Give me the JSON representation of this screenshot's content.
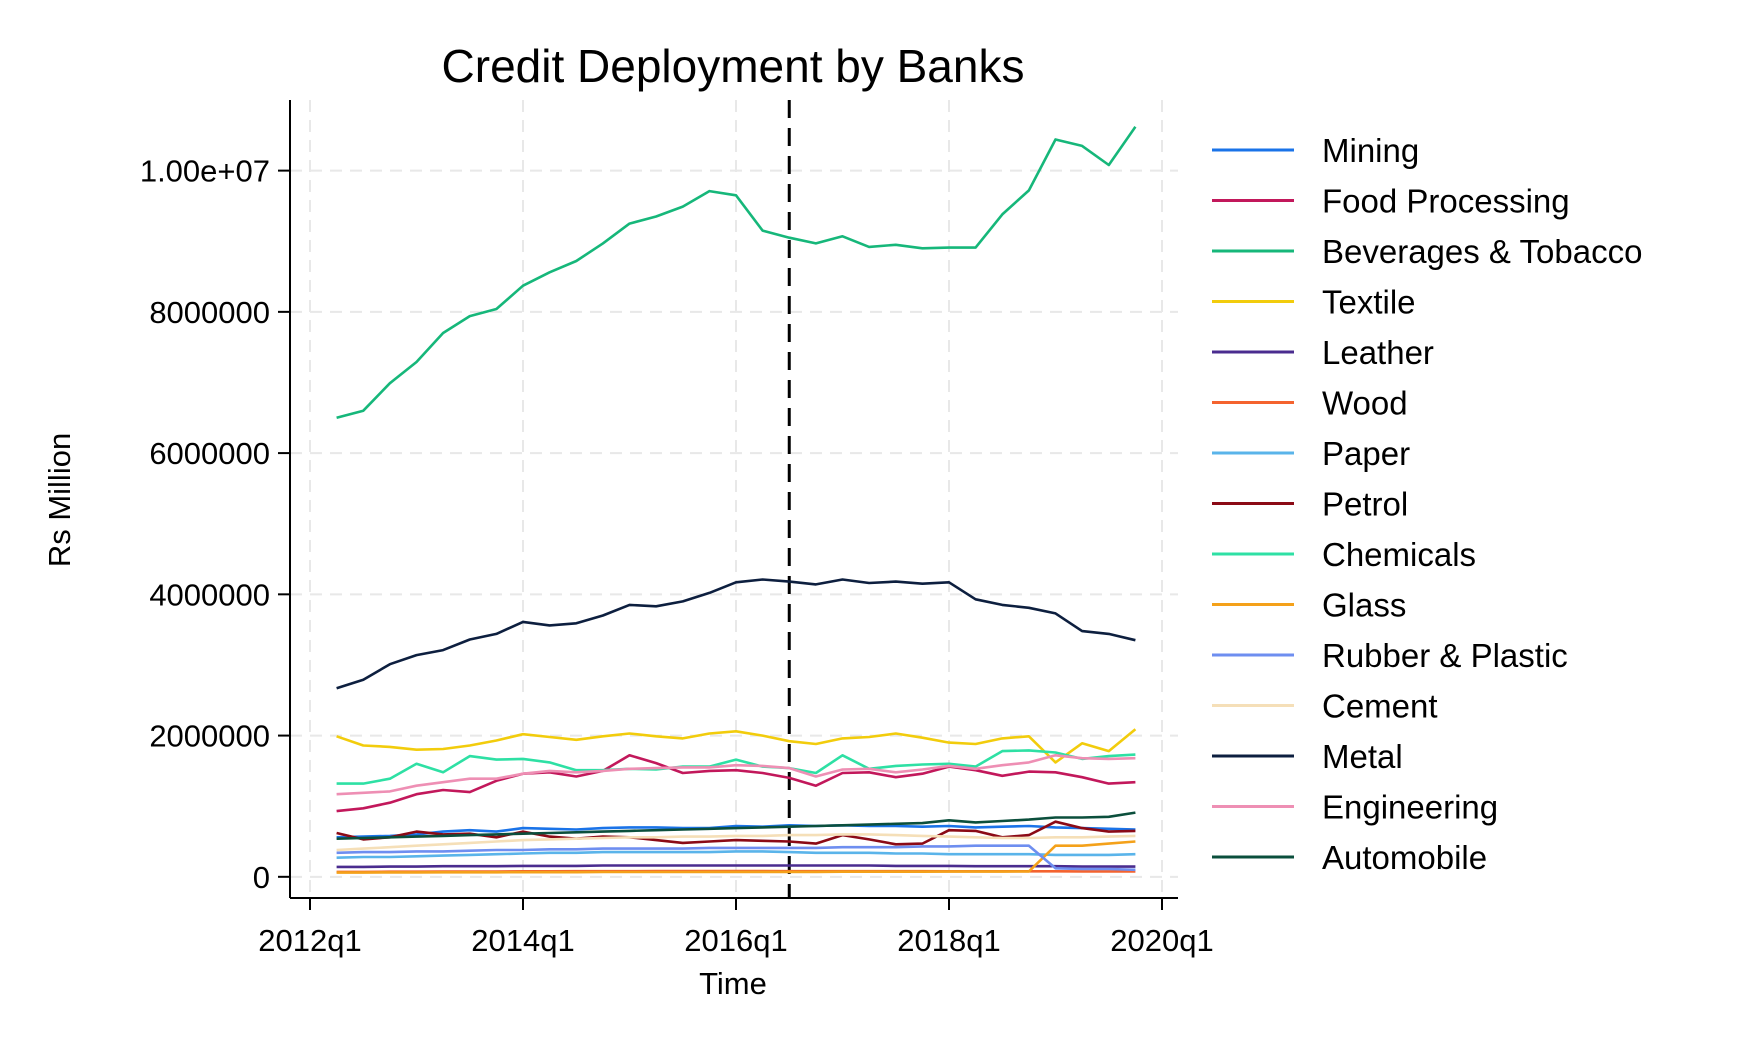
{
  "chart_data": {
    "type": "line",
    "title": "Credit Deployment by Banks",
    "xlabel": "Time",
    "ylabel": "Rs Million",
    "x_range": [
      2012.0,
      2020.0
    ],
    "ylim": [
      -300000,
      11000000
    ],
    "x_ticks": [
      {
        "value": 2012.0,
        "label": "2012q1"
      },
      {
        "value": 2014.0,
        "label": "2014q1"
      },
      {
        "value": 2016.0,
        "label": "2016q1"
      },
      {
        "value": 2018.0,
        "label": "2018q1"
      },
      {
        "value": 2020.0,
        "label": "2020q1"
      }
    ],
    "y_ticks": [
      {
        "value": 0,
        "label": "0"
      },
      {
        "value": 2000000,
        "label": "2000000"
      },
      {
        "value": 4000000,
        "label": "4000000"
      },
      {
        "value": 6000000,
        "label": "6000000"
      },
      {
        "value": 8000000,
        "label": "8000000"
      },
      {
        "value": 10000000,
        "label": "1.00e+07"
      }
    ],
    "grid": true,
    "legend_position": "right",
    "reference_line": {
      "x": 2016.5,
      "style": "dashed"
    },
    "x": [
      "2012q2",
      "2012q3",
      "2012q4",
      "2013q1",
      "2013q2",
      "2013q3",
      "2013q4",
      "2014q1",
      "2014q2",
      "2014q3",
      "2014q4",
      "2015q1",
      "2015q2",
      "2015q3",
      "2015q4",
      "2016q1",
      "2016q2",
      "2016q3",
      "2016q4",
      "2017q1",
      "2017q2",
      "2017q3",
      "2017q4",
      "2018q1",
      "2018q2",
      "2018q3",
      "2018q4",
      "2019q1",
      "2019q2",
      "2019q3",
      "2019q4"
    ],
    "series": [
      {
        "name": "Mining",
        "color": "#1a73e8",
        "values": [
          560000,
          570000,
          580000,
          600000,
          640000,
          660000,
          640000,
          690000,
          680000,
          670000,
          690000,
          700000,
          700000,
          690000,
          690000,
          720000,
          710000,
          730000,
          720000,
          730000,
          720000,
          720000,
          710000,
          720000,
          700000,
          710000,
          720000,
          700000,
          690000,
          680000,
          670000
        ]
      },
      {
        "name": "Food Processing",
        "color": "#c2185b",
        "values": [
          930000,
          970000,
          1050000,
          1170000,
          1230000,
          1200000,
          1360000,
          1460000,
          1480000,
          1420000,
          1500000,
          1720000,
          1610000,
          1470000,
          1500000,
          1510000,
          1470000,
          1400000,
          1290000,
          1470000,
          1480000,
          1410000,
          1460000,
          1560000,
          1510000,
          1430000,
          1490000,
          1480000,
          1410000,
          1320000,
          1340000
        ]
      },
      {
        "name": "Beverages & Tobacco",
        "color": "#16b77a",
        "values": [
          6500000,
          6600000,
          6990000,
          7290000,
          7700000,
          7940000,
          8040000,
          8370000,
          8560000,
          8720000,
          8970000,
          9250000,
          9350000,
          9490000,
          9710000,
          9650000,
          9150000,
          9050000,
          8970000,
          9070000,
          8920000,
          8950000,
          8900000,
          8910000,
          8910000,
          9380000,
          9720000,
          10440000,
          10350000,
          10080000,
          10620000
        ]
      },
      {
        "name": "Textile",
        "color": "#f2cc0c",
        "values": [
          1990000,
          1860000,
          1840000,
          1800000,
          1810000,
          1860000,
          1930000,
          2020000,
          1980000,
          1940000,
          1990000,
          2030000,
          1990000,
          1960000,
          2030000,
          2060000,
          2000000,
          1920000,
          1880000,
          1960000,
          1980000,
          2030000,
          1970000,
          1900000,
          1880000,
          1960000,
          1990000,
          1620000,
          1890000,
          1780000,
          2090000
        ]
      },
      {
        "name": "Leather",
        "color": "#4a2c8f",
        "values": [
          140000,
          140000,
          145000,
          145000,
          150000,
          150000,
          150000,
          155000,
          155000,
          155000,
          160000,
          160000,
          160000,
          160000,
          160000,
          160000,
          160000,
          160000,
          160000,
          160000,
          160000,
          155000,
          155000,
          155000,
          150000,
          150000,
          150000,
          150000,
          145000,
          145000,
          145000
        ]
      },
      {
        "name": "Wood",
        "color": "#f4632f",
        "values": [
          70000,
          70000,
          72000,
          72000,
          75000,
          75000,
          75000,
          78000,
          78000,
          80000,
          80000,
          80000,
          82000,
          82000,
          82000,
          82000,
          82000,
          80000,
          80000,
          80000,
          80000,
          80000,
          80000,
          78000,
          78000,
          78000,
          78000,
          78000,
          76000,
          76000,
          76000
        ]
      },
      {
        "name": "Paper",
        "color": "#5ab4ea",
        "values": [
          270000,
          280000,
          280000,
          290000,
          300000,
          310000,
          320000,
          330000,
          340000,
          340000,
          350000,
          350000,
          350000,
          350000,
          350000,
          360000,
          360000,
          350000,
          340000,
          340000,
          340000,
          330000,
          330000,
          320000,
          320000,
          320000,
          320000,
          310000,
          310000,
          310000,
          320000
        ]
      },
      {
        "name": "Petrol",
        "color": "#8b0a16",
        "values": [
          620000,
          530000,
          560000,
          640000,
          600000,
          610000,
          560000,
          640000,
          570000,
          540000,
          570000,
          560000,
          520000,
          480000,
          500000,
          520000,
          510000,
          500000,
          470000,
          590000,
          530000,
          460000,
          470000,
          660000,
          650000,
          560000,
          590000,
          780000,
          690000,
          640000,
          650000
        ]
      },
      {
        "name": "Chemicals",
        "color": "#2ee0a4",
        "values": [
          1320000,
          1320000,
          1390000,
          1600000,
          1480000,
          1710000,
          1660000,
          1670000,
          1620000,
          1510000,
          1510000,
          1530000,
          1520000,
          1560000,
          1560000,
          1660000,
          1560000,
          1540000,
          1470000,
          1720000,
          1530000,
          1570000,
          1590000,
          1600000,
          1560000,
          1780000,
          1790000,
          1760000,
          1670000,
          1710000,
          1730000
        ]
      },
      {
        "name": "Glass",
        "color": "#f4a11a",
        "values": [
          60000,
          60000,
          62000,
          62000,
          64000,
          64000,
          64000,
          66000,
          66000,
          66000,
          68000,
          68000,
          68000,
          68000,
          70000,
          70000,
          70000,
          70000,
          70000,
          72000,
          72000,
          72000,
          72000,
          74000,
          74000,
          74000,
          76000,
          440000,
          440000,
          470000,
          500000
        ]
      },
      {
        "name": "Rubber & Plastic",
        "color": "#6e8ef0",
        "values": [
          340000,
          350000,
          350000,
          360000,
          360000,
          370000,
          380000,
          380000,
          390000,
          390000,
          400000,
          400000,
          400000,
          400000,
          410000,
          410000,
          410000,
          410000,
          410000,
          420000,
          420000,
          420000,
          430000,
          430000,
          440000,
          440000,
          440000,
          120000,
          110000,
          110000,
          100000
        ]
      },
      {
        "name": "Cement",
        "color": "#f5dfb8",
        "values": [
          380000,
          400000,
          420000,
          440000,
          460000,
          480000,
          500000,
          520000,
          530000,
          540000,
          550000,
          560000,
          560000,
          570000,
          570000,
          580000,
          580000,
          590000,
          590000,
          600000,
          600000,
          590000,
          580000,
          570000,
          560000,
          550000,
          550000,
          560000,
          560000,
          570000,
          580000
        ]
      },
      {
        "name": "Metal",
        "color": "#0d1f3f",
        "values": [
          2670000,
          2790000,
          3010000,
          3140000,
          3210000,
          3360000,
          3440000,
          3610000,
          3560000,
          3590000,
          3700000,
          3850000,
          3830000,
          3900000,
          4020000,
          4170000,
          4210000,
          4180000,
          4140000,
          4210000,
          4160000,
          4180000,
          4150000,
          4170000,
          3930000,
          3850000,
          3810000,
          3730000,
          3480000,
          3440000,
          3350000
        ]
      },
      {
        "name": "Engineering",
        "color": "#ee8fb4",
        "values": [
          1170000,
          1190000,
          1210000,
          1290000,
          1340000,
          1390000,
          1390000,
          1460000,
          1500000,
          1480000,
          1500000,
          1530000,
          1540000,
          1550000,
          1550000,
          1580000,
          1570000,
          1540000,
          1420000,
          1520000,
          1530000,
          1480000,
          1520000,
          1570000,
          1530000,
          1580000,
          1620000,
          1720000,
          1680000,
          1670000,
          1680000
        ]
      },
      {
        "name": "Automobile",
        "color": "#0b4f3c",
        "values": [
          540000,
          550000,
          560000,
          570000,
          580000,
          590000,
          600000,
          610000,
          620000,
          630000,
          640000,
          650000,
          660000,
          670000,
          680000,
          690000,
          700000,
          710000,
          720000,
          730000,
          740000,
          750000,
          760000,
          800000,
          770000,
          790000,
          810000,
          840000,
          840000,
          850000,
          910000
        ]
      }
    ]
  }
}
